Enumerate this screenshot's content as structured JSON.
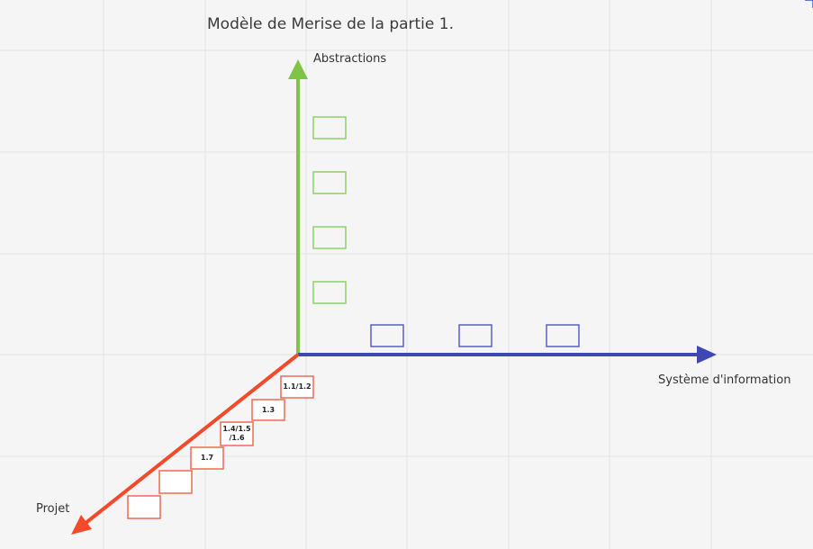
{
  "title": "Modèle de Merise de la partie 1.",
  "axes": {
    "vertical": {
      "label": "Abstractions",
      "color": "#7ec544"
    },
    "horizontal": {
      "label": "Système d'information",
      "color": "#3f47b5"
    },
    "diagonal": {
      "label": "Projet",
      "color": "#f24a2a"
    }
  },
  "green_boxes": {
    "count": 4,
    "color": "#8fd16a"
  },
  "blue_boxes": {
    "count": 3,
    "color": "#5a5ec7"
  },
  "red_boxes": {
    "color": "#f06a55",
    "labels": [
      "1.1/1.2",
      "1.3",
      "1.4/1.5 /1.6",
      "1.7",
      "",
      ""
    ]
  }
}
